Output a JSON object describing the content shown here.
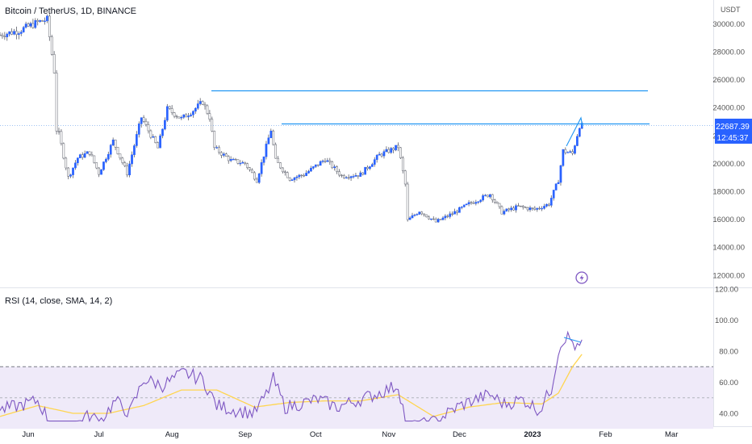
{
  "header": {
    "symbol_title": "Bitcoin / TetherUS, 1D, BINANCE",
    "currency": "USDT"
  },
  "price_axis": {
    "ticks": [
      "30000.00",
      "28000.00",
      "26000.00",
      "24000.00",
      "22000.00",
      "20000.00",
      "18000.00",
      "16000.00",
      "14000.00",
      "12000.00"
    ],
    "current_price": "22687.39",
    "countdown": "12:45:37"
  },
  "rsi": {
    "title": "RSI (14, close, SMA, 14, 2)",
    "ticks": [
      "120.00",
      "100.00",
      "80.00",
      "60.00",
      "40.00"
    ]
  },
  "time_axis": {
    "labels": [
      "Jun",
      "Jul",
      "Aug",
      "Sep",
      "Oct",
      "Nov",
      "Dec",
      "2023",
      "Feb",
      "Mar"
    ]
  },
  "colors": {
    "up": "#2962ff",
    "down": "#ffffff",
    "wick": "#5d606b",
    "level_line": "#2196f3",
    "rsi_line": "#7e57c2",
    "rsi_ma": "#ffd54f",
    "rsi_band": "#efeaf9",
    "price_badge": "#2962ff"
  },
  "chart_data": [
    {
      "type": "candlestick",
      "title": "Bitcoin / TetherUS, 1D, BINANCE",
      "ylim": [
        12000,
        31500
      ],
      "x_range": [
        "2022-05-20",
        "2023-03-10"
      ],
      "price_path": [
        [
          "2022-05-20",
          29200
        ],
        [
          "2022-05-28",
          29500
        ],
        [
          "2022-06-05",
          30100
        ],
        [
          "2022-06-09",
          30300
        ],
        [
          "2022-06-12",
          26600
        ],
        [
          "2022-06-13",
          22400
        ],
        [
          "2022-06-14",
          22100
        ],
        [
          "2022-06-18",
          19000
        ],
        [
          "2022-06-22",
          20400
        ],
        [
          "2022-06-27",
          20800
        ],
        [
          "2022-07-01",
          19300
        ],
        [
          "2022-07-07",
          21600
        ],
        [
          "2022-07-13",
          19300
        ],
        [
          "2022-07-19",
          23300
        ],
        [
          "2022-07-26",
          21100
        ],
        [
          "2022-07-30",
          23900
        ],
        [
          "2022-08-05",
          23200
        ],
        [
          "2022-08-10",
          23800
        ],
        [
          "2022-08-14",
          24400
        ],
        [
          "2022-08-17",
          23300
        ],
        [
          "2022-08-19",
          21100
        ],
        [
          "2022-08-26",
          20200
        ],
        [
          "2022-09-01",
          20000
        ],
        [
          "2022-09-06",
          18800
        ],
        [
          "2022-09-12",
          22400
        ],
        [
          "2022-09-14",
          20200
        ],
        [
          "2022-09-20",
          18900
        ],
        [
          "2022-09-26",
          19200
        ],
        [
          "2022-10-05",
          20300
        ],
        [
          "2022-10-12",
          19100
        ],
        [
          "2022-10-20",
          19200
        ],
        [
          "2022-10-28",
          20600
        ],
        [
          "2022-11-05",
          21200
        ],
        [
          "2022-11-08",
          18500
        ],
        [
          "2022-11-09",
          15900
        ],
        [
          "2022-11-14",
          16600
        ],
        [
          "2022-11-21",
          15800
        ],
        [
          "2022-11-28",
          16400
        ],
        [
          "2022-12-05",
          17100
        ],
        [
          "2022-12-14",
          17800
        ],
        [
          "2022-12-19",
          16500
        ],
        [
          "2022-12-26",
          16900
        ],
        [
          "2023-01-02",
          16700
        ],
        [
          "2023-01-08",
          17100
        ],
        [
          "2023-01-12",
          18800
        ],
        [
          "2023-01-14",
          20900
        ],
        [
          "2023-01-18",
          20700
        ],
        [
          "2023-01-21",
          22700
        ],
        [
          "2023-01-22",
          22700
        ]
      ]
    },
    {
      "type": "line",
      "title": "RSI (14, close, SMA, 14, 2)",
      "ylim": [
        35,
        120
      ],
      "series": [
        {
          "name": "RSI",
          "x": [
            "2022-05-20",
            "2022-05-28",
            "2022-06-05",
            "2022-06-12",
            "2022-06-18",
            "2022-06-25",
            "2022-07-02",
            "2022-07-08",
            "2022-07-14",
            "2022-07-20",
            "2022-07-28",
            "2022-08-06",
            "2022-08-14",
            "2022-08-20",
            "2022-08-28",
            "2022-09-05",
            "2022-09-10",
            "2022-09-13",
            "2022-09-18",
            "2022-09-24",
            "2022-10-02",
            "2022-10-10",
            "2022-10-18",
            "2022-10-26",
            "2022-11-05",
            "2022-11-09",
            "2022-11-14",
            "2022-11-21",
            "2022-11-30",
            "2022-12-06",
            "2022-12-14",
            "2022-12-20",
            "2022-12-28",
            "2023-01-04",
            "2023-01-09",
            "2023-01-12",
            "2023-01-14",
            "2023-01-16",
            "2023-01-18",
            "2023-01-20",
            "2023-01-22"
          ],
          "y": [
            42,
            45,
            48,
            30,
            28,
            38,
            36,
            48,
            40,
            62,
            58,
            66,
            62,
            45,
            42,
            40,
            52,
            62,
            44,
            46,
            49,
            44,
            48,
            52,
            58,
            30,
            32,
            35,
            44,
            48,
            52,
            46,
            49,
            42,
            56,
            80,
            88,
            89,
            86,
            81,
            85
          ]
        },
        {
          "name": "RSI-based MA",
          "x": [
            "2022-05-20",
            "2022-06-05",
            "2022-06-20",
            "2022-07-05",
            "2022-07-20",
            "2022-08-05",
            "2022-08-20",
            "2022-09-05",
            "2022-09-20",
            "2022-10-05",
            "2022-10-20",
            "2022-11-05",
            "2022-11-20",
            "2022-12-05",
            "2022-12-20",
            "2023-01-05",
            "2023-01-12",
            "2023-01-18",
            "2023-01-22"
          ],
          "y": [
            38,
            45,
            40,
            40,
            45,
            55,
            55,
            44,
            47,
            48,
            48,
            52,
            38,
            44,
            47,
            46,
            53,
            70,
            78
          ]
        }
      ]
    }
  ]
}
